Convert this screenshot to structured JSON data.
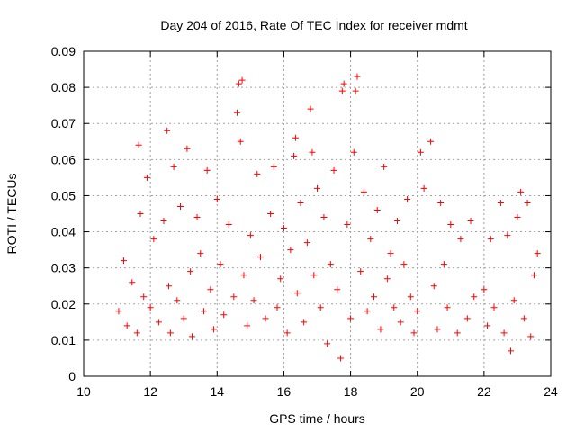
{
  "chart_data": {
    "type": "scatter",
    "title": "Day 204 of 2016, Rate Of TEC Index for receiver mdmt",
    "xlabel": "GPS time / hours",
    "ylabel": "ROTI / TECUs",
    "xlim": [
      10,
      24
    ],
    "ylim": [
      0,
      0.09
    ],
    "xticks": [
      "10",
      "12",
      "14",
      "16",
      "18",
      "20",
      "22",
      "24"
    ],
    "yticks": [
      "0",
      "0.01",
      "0.02",
      "0.03",
      "0.04",
      "0.05",
      "0.06",
      "0.07",
      "0.08",
      "0.09"
    ],
    "grid": true,
    "legend": "none",
    "marker": "plus",
    "color": "#ff0000",
    "series": [
      {
        "x": [
          11.05,
          11.2,
          11.3,
          11.45,
          11.6,
          11.65,
          11.7,
          11.8,
          11.9,
          12.0,
          12.1,
          12.25,
          12.4,
          12.5,
          12.55,
          12.6,
          12.7,
          12.8,
          12.9,
          13.0,
          13.1,
          13.2,
          13.25,
          13.4,
          13.5,
          13.6,
          13.7,
          13.8,
          13.9,
          14.0,
          14.1,
          14.2,
          14.35,
          14.5,
          14.6,
          14.65,
          14.7,
          14.75,
          14.8,
          14.9,
          15.0,
          15.1,
          15.2,
          15.3,
          15.45,
          15.6,
          15.7,
          15.8,
          15.9,
          16.0,
          16.1,
          16.2,
          16.3,
          16.35,
          16.4,
          16.5,
          16.6,
          16.7,
          16.8,
          16.85,
          16.9,
          17.0,
          17.1,
          17.2,
          17.3,
          17.4,
          17.5,
          17.6,
          17.7,
          17.75,
          17.8,
          17.9,
          18.0,
          18.1,
          18.15,
          18.2,
          18.3,
          18.4,
          18.5,
          18.6,
          18.7,
          18.8,
          18.9,
          19.0,
          19.1,
          19.2,
          19.3,
          19.4,
          19.5,
          19.6,
          19.7,
          19.8,
          19.9,
          20.0,
          20.1,
          20.2,
          20.4,
          20.5,
          20.6,
          20.7,
          20.8,
          20.9,
          21.0,
          21.2,
          21.3,
          21.5,
          21.6,
          21.7,
          22.0,
          22.1,
          22.2,
          22.3,
          22.5,
          22.6,
          22.7,
          22.8,
          22.9,
          23.0,
          23.1,
          23.2,
          23.3,
          23.4,
          23.5,
          23.6
        ],
        "y": [
          0.018,
          0.032,
          0.014,
          0.026,
          0.012,
          0.064,
          0.045,
          0.022,
          0.055,
          0.019,
          0.038,
          0.015,
          0.043,
          0.068,
          0.025,
          0.012,
          0.058,
          0.021,
          0.047,
          0.016,
          0.063,
          0.029,
          0.011,
          0.044,
          0.034,
          0.018,
          0.057,
          0.024,
          0.013,
          0.049,
          0.031,
          0.017,
          0.042,
          0.022,
          0.073,
          0.081,
          0.065,
          0.082,
          0.028,
          0.014,
          0.039,
          0.021,
          0.056,
          0.033,
          0.016,
          0.045,
          0.058,
          0.019,
          0.027,
          0.041,
          0.012,
          0.035,
          0.061,
          0.066,
          0.023,
          0.048,
          0.015,
          0.037,
          0.074,
          0.062,
          0.028,
          0.052,
          0.019,
          0.044,
          0.009,
          0.031,
          0.057,
          0.024,
          0.005,
          0.079,
          0.081,
          0.042,
          0.016,
          0.062,
          0.079,
          0.083,
          0.029,
          0.051,
          0.018,
          0.038,
          0.022,
          0.046,
          0.013,
          0.058,
          0.027,
          0.034,
          0.019,
          0.043,
          0.015,
          0.031,
          0.049,
          0.022,
          0.012,
          0.018,
          0.062,
          0.052,
          0.065,
          0.025,
          0.013,
          0.048,
          0.031,
          0.019,
          0.042,
          0.012,
          0.038,
          0.016,
          0.043,
          0.022,
          0.024,
          0.014,
          0.038,
          0.019,
          0.048,
          0.012,
          0.039,
          0.007,
          0.021,
          0.044,
          0.051,
          0.016,
          0.048,
          0.011,
          0.028,
          0.034
        ]
      }
    ]
  }
}
